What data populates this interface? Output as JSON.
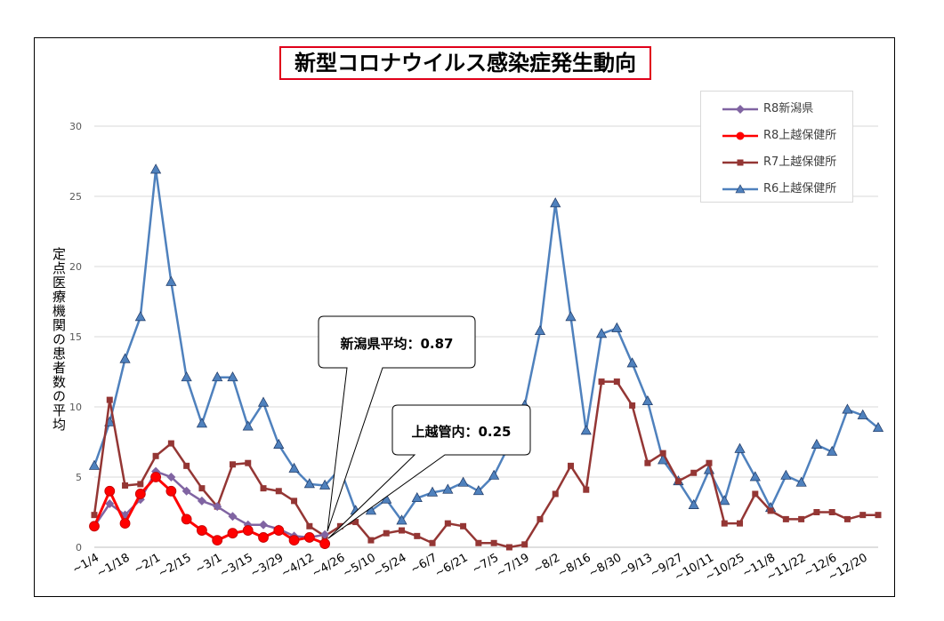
{
  "chart_data": {
    "type": "line",
    "title": "新型コロナウイルス感染症発生動向",
    "ylabel": "定点医療機関の患者数の平均",
    "xlabel": "",
    "ylim": [
      0,
      30
    ],
    "yticks": [
      0,
      5,
      10,
      15,
      20,
      25,
      30
    ],
    "grid": true,
    "legend_position": "top-right",
    "x_tick_labels": [
      "~1/4",
      "~1/18",
      "~2/1",
      "~2/15",
      "~3/1",
      "~3/15",
      "~3/29",
      "~4/12",
      "~4/26",
      "~5/10",
      "~5/24",
      "~6/7",
      "~6/21",
      "~7/5",
      "~7/19",
      "~8/2",
      "~8/16",
      "~8/30",
      "~9/13",
      "~9/27",
      "~10/11",
      "~10/25",
      "~11/8",
      "~11/22",
      "~12/6",
      "~12/20"
    ],
    "series": [
      {
        "name": "R8新潟県",
        "color": "#8064a2",
        "marker": "diamond",
        "values": [
          1.5,
          3.1,
          2.3,
          3.4,
          5.4,
          5.0,
          4.0,
          3.3,
          2.9,
          2.2,
          1.6,
          1.6,
          1.3,
          0.8,
          0.7,
          0.9
        ]
      },
      {
        "name": "R8上越保健所",
        "color": "#ff0000",
        "marker": "circle",
        "values": [
          1.5,
          4.0,
          1.7,
          3.8,
          5.0,
          4.0,
          2.0,
          1.2,
          0.5,
          1.0,
          1.2,
          0.7,
          1.2,
          0.5,
          0.7,
          0.25
        ]
      },
      {
        "name": "R7上越保健所",
        "color": "#943634",
        "marker": "square",
        "values": [
          2.3,
          10.5,
          4.4,
          4.5,
          6.5,
          7.4,
          5.8,
          4.2,
          2.9,
          5.9,
          6.0,
          4.2,
          4.0,
          3.3,
          1.5,
          0.8,
          1.5,
          1.8,
          0.5,
          1.0,
          1.2,
          0.8,
          0.3,
          1.7,
          1.5,
          0.3,
          0.3,
          0.0,
          0.2,
          2.0,
          3.8,
          5.8,
          4.1,
          11.8,
          11.8,
          10.1,
          6.0,
          6.7,
          4.7,
          5.3,
          6.0,
          1.7,
          1.7,
          3.8,
          2.6,
          2.0,
          2.0,
          2.5,
          2.5,
          2.0,
          2.3,
          2.3
        ]
      },
      {
        "name": "R6上越保健所",
        "color": "#4f81bd",
        "marker": "triangle",
        "values": [
          5.8,
          8.9,
          13.4,
          16.4,
          26.9,
          18.9,
          12.1,
          8.8,
          12.1,
          12.1,
          8.6,
          10.3,
          7.3,
          5.6,
          4.5,
          4.4,
          5.6,
          2.6,
          2.6,
          3.4,
          1.9,
          3.5,
          3.9,
          4.1,
          4.6,
          4.0,
          5.1,
          7.3,
          10.1,
          15.4,
          24.5,
          16.4,
          8.3,
          15.2,
          15.6,
          13.1,
          10.4,
          6.2,
          4.7,
          3.0,
          5.5,
          3.3,
          7.0,
          5.0,
          2.8,
          5.1,
          4.6,
          7.3,
          6.8,
          9.8,
          9.4,
          8.5
        ]
      }
    ],
    "annotations": [
      {
        "text": "新潟県平均：0.87",
        "points_to": "R8新潟県 latest week"
      },
      {
        "text": "上越管内：0.25",
        "points_to": "R8上越保健所 latest week"
      }
    ]
  }
}
